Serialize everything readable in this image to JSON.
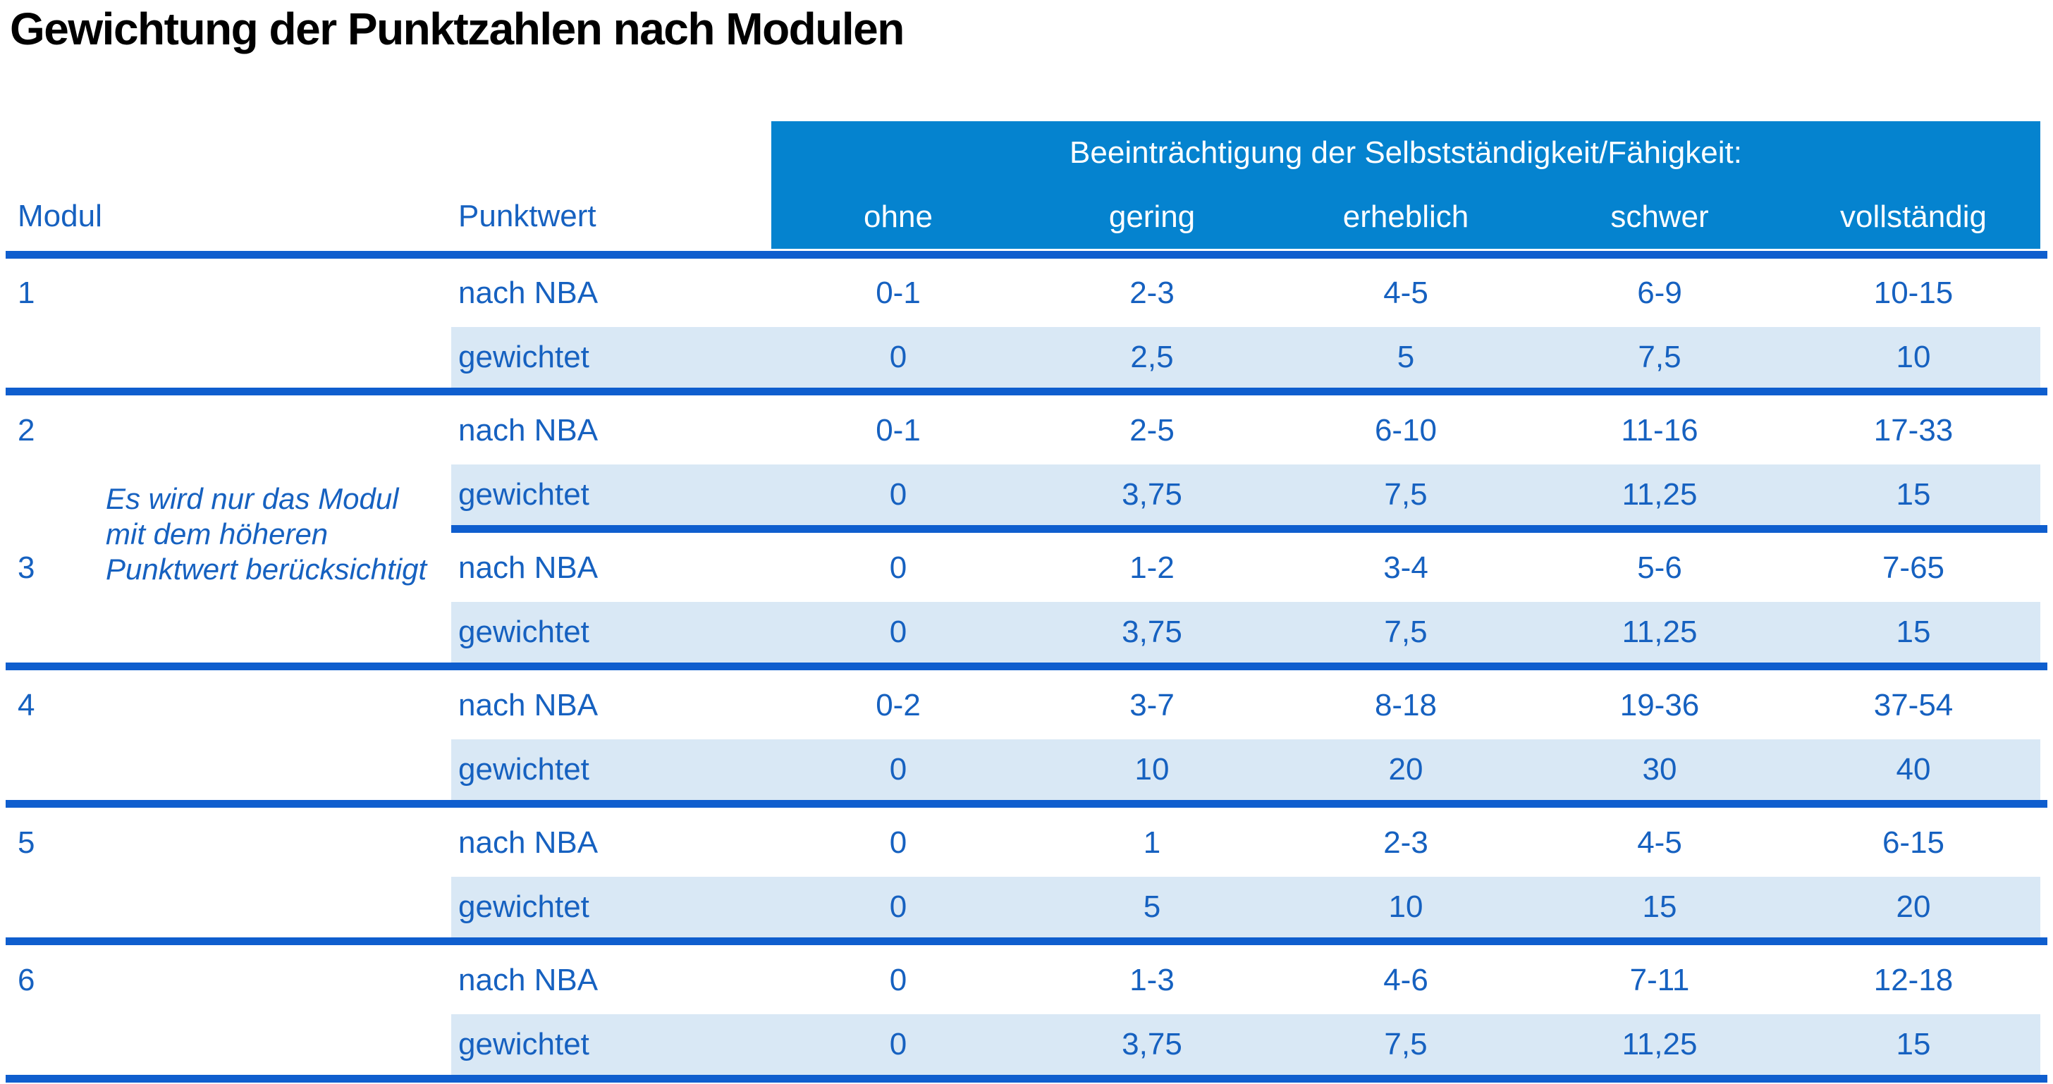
{
  "title": "Gewichtung der Punktzahlen nach Modulen",
  "table": {
    "corner": {
      "modul": "Modul",
      "punktwert": "Punktwert"
    },
    "header_band_title": "Beeinträchtigung der Selbstständigkeit/Fähigkeit:",
    "severity_columns": [
      "ohne",
      "gering",
      "erheblich",
      "schwer",
      "vollständig"
    ],
    "row_labels": {
      "nba": "nach NBA",
      "weighted": "gewichtet"
    },
    "note_lines": [
      "Es wird nur das Modul",
      "mit dem höheren",
      "Punktwert berücksichtigt"
    ],
    "modules": [
      {
        "id": "1",
        "nba": [
          "0-1",
          "2-3",
          "4-5",
          "6-9",
          "10-15"
        ],
        "weighted": [
          "0",
          "2,5",
          "5",
          "7,5",
          "10"
        ]
      },
      {
        "id": "2",
        "nba": [
          "0-1",
          "2-5",
          "6-10",
          "11-16",
          "17-33"
        ],
        "weighted": [
          "0",
          "3,75",
          "7,5",
          "11,25",
          "15"
        ]
      },
      {
        "id": "3",
        "nba": [
          "0",
          "1-2",
          "3-4",
          "5-6",
          "7-65"
        ],
        "weighted": [
          "0",
          "3,75",
          "7,5",
          "11,25",
          "15"
        ]
      },
      {
        "id": "4",
        "nba": [
          "0-2",
          "3-7",
          "8-18",
          "19-36",
          "37-54"
        ],
        "weighted": [
          "0",
          "10",
          "20",
          "30",
          "40"
        ]
      },
      {
        "id": "5",
        "nba": [
          "0",
          "1",
          "2-3",
          "4-5",
          "6-15"
        ],
        "weighted": [
          "0",
          "5",
          "10",
          "15",
          "20"
        ]
      },
      {
        "id": "6",
        "nba": [
          "0",
          "1-3",
          "4-6",
          "7-11",
          "12-18"
        ],
        "weighted": [
          "0",
          "3,75",
          "7,5",
          "11,25",
          "15"
        ]
      }
    ]
  },
  "colors": {
    "header_bg": "#0583CF",
    "divider": "#0F5ECE",
    "row_alt": "#D9E8F5",
    "text_blue": "#1661C0",
    "header_text": "#FFFFFF",
    "title_color": "#000000",
    "page_bg": "#FFFFFF"
  }
}
